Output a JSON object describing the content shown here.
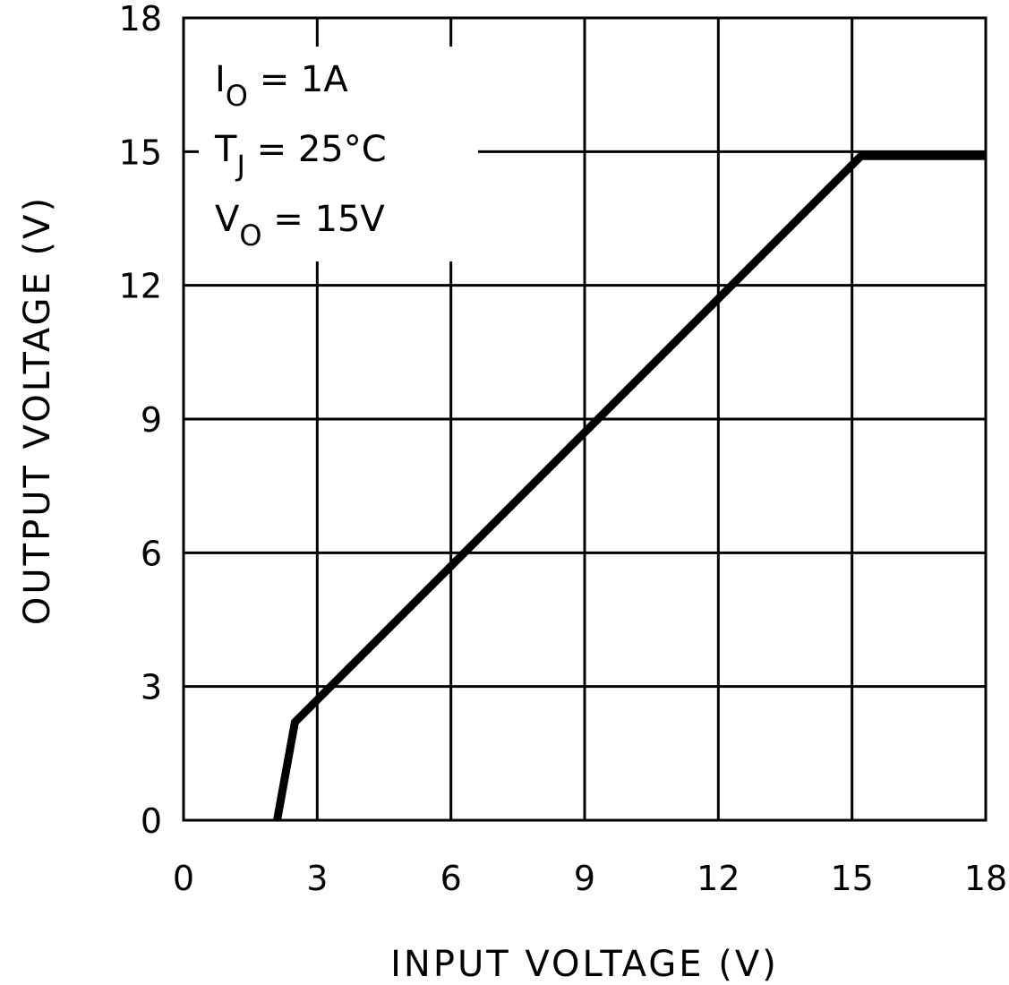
{
  "chart_data": {
    "type": "line",
    "xlabel": "INPUT VOLTAGE (V)",
    "ylabel": "OUTPUT VOLTAGE (V)",
    "xlim": [
      0,
      18
    ],
    "ylim": [
      0,
      18
    ],
    "xticks": [
      "0",
      "3",
      "6",
      "9",
      "12",
      "15",
      "18"
    ],
    "yticks": [
      "0",
      "3",
      "6",
      "9",
      "12",
      "15",
      "18"
    ],
    "grid": true,
    "series": [
      {
        "x": [
          2.1,
          2.5,
          15.2,
          18
        ],
        "y": [
          0,
          2.2,
          14.9,
          14.9
        ]
      }
    ],
    "annotations": [
      {
        "main": "I",
        "sub": "O",
        "rest": " =  1A"
      },
      {
        "main": "T",
        "sub": "J",
        "rest": " =  25°C"
      },
      {
        "main": "V",
        "sub": "O",
        "rest": " =  15V"
      }
    ],
    "colors": {
      "line": "#000000",
      "grid": "#000000",
      "background": "#ffffff"
    }
  }
}
